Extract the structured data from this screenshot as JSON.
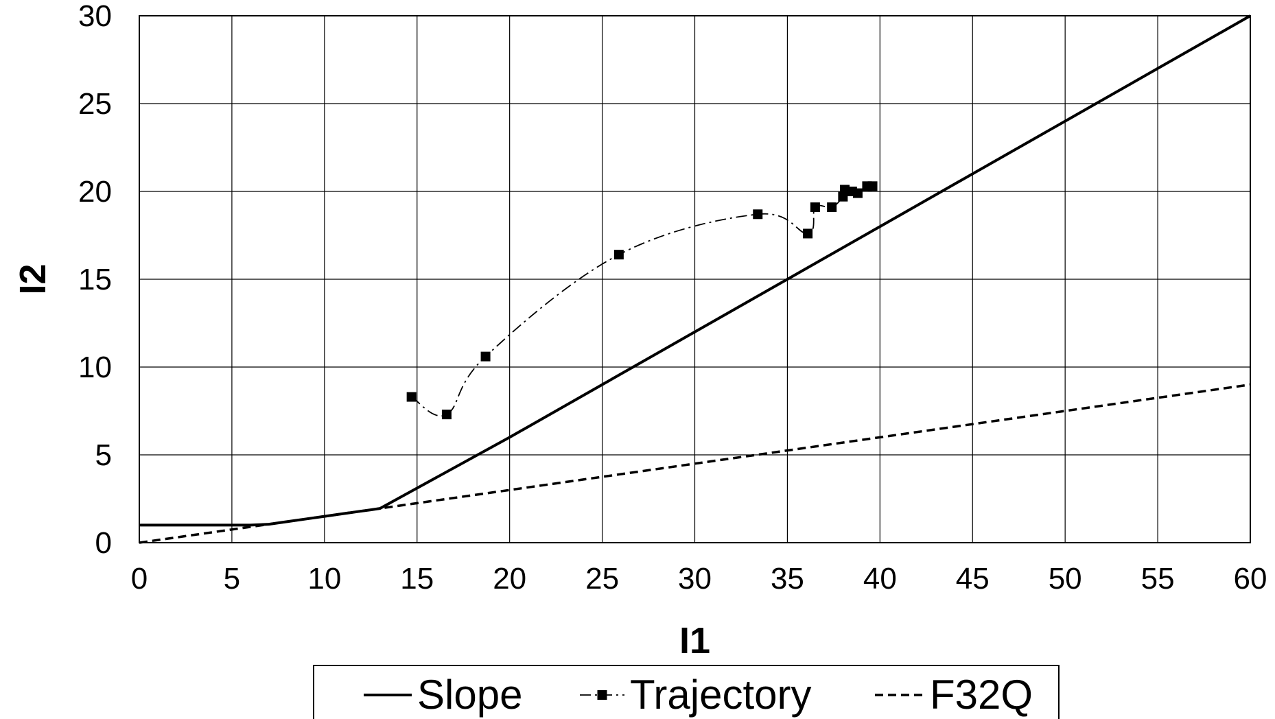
{
  "chart_data": {
    "type": "line",
    "title": "",
    "xlabel": "I1",
    "ylabel": "I2",
    "xlim": [
      0,
      60
    ],
    "ylim": [
      0,
      30
    ],
    "x_ticks": [
      "0",
      "5",
      "10",
      "15",
      "20",
      "25",
      "30",
      "35",
      "40",
      "45",
      "50",
      "55",
      "60"
    ],
    "y_ticks": [
      "0",
      "5",
      "10",
      "15",
      "20",
      "25",
      "30"
    ],
    "grid": true,
    "legend_position": "bottom",
    "series": [
      {
        "name": "Slope",
        "style": "solid",
        "marker": "none",
        "x": [
          0,
          6,
          7,
          8,
          9,
          10,
          11,
          12,
          12.5,
          13,
          20,
          30,
          40,
          50,
          60
        ],
        "y": [
          1,
          1,
          1.05,
          1.2,
          1.35,
          1.5,
          1.65,
          1.8,
          1.87,
          1.95,
          6,
          12,
          18,
          24,
          30
        ]
      },
      {
        "name": "Trajectory",
        "style": "dash-dot",
        "marker": "square",
        "x": [
          14.7,
          16.6,
          18.7,
          25.9,
          33.4,
          36.1,
          36.5,
          37.4,
          38.0,
          38.1,
          38.5,
          38.8,
          39.3,
          39.6
        ],
        "y": [
          8.3,
          7.3,
          10.6,
          16.4,
          18.7,
          17.6,
          19.1,
          19.1,
          19.7,
          20.1,
          20.0,
          19.9,
          20.3,
          20.3
        ]
      },
      {
        "name": "F32Q",
        "style": "dashed",
        "marker": "none",
        "x": [
          0,
          60
        ],
        "y": [
          0,
          9
        ]
      }
    ]
  }
}
